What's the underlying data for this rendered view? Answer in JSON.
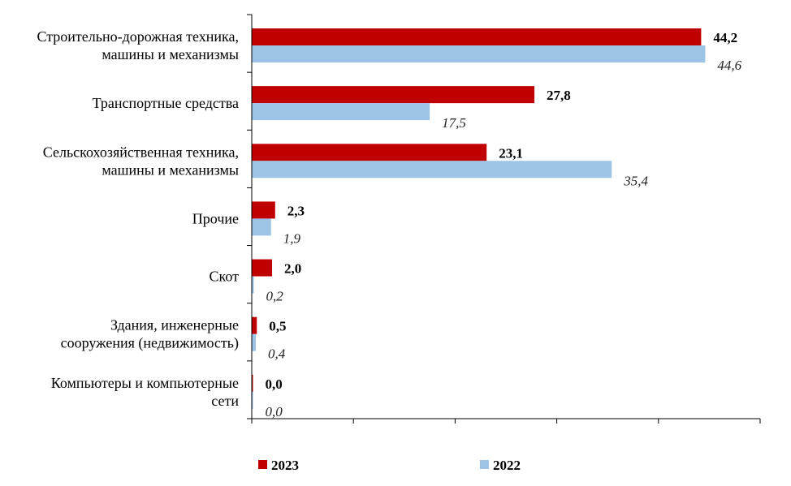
{
  "chart_data": {
    "type": "bar",
    "orientation": "horizontal",
    "categories": [
      [
        "Строительно-дорожная техника,",
        "машины и механизмы"
      ],
      [
        "Транспортные средства"
      ],
      [
        "Сельскохозяйственная техника,",
        "машины и механизмы"
      ],
      [
        "Прочие"
      ],
      [
        "Скот"
      ],
      [
        "Здания, инженерные",
        "сооружения (недвижимость)"
      ],
      [
        "Компьютеры и компьютерные",
        "сети"
      ]
    ],
    "series": [
      {
        "name": "2023",
        "color": "#c00000",
        "values": [
          44.2,
          27.8,
          23.1,
          2.3,
          2.0,
          0.5,
          0.0
        ],
        "labels": [
          "44,2",
          "27,8",
          "23,1",
          "2,3",
          "2,0",
          "0,5",
          "0,0"
        ]
      },
      {
        "name": "2022",
        "color": "#9dc3e6",
        "values": [
          44.6,
          17.5,
          35.4,
          1.9,
          0.2,
          0.4,
          0.0
        ],
        "labels": [
          "44,6",
          "17,5",
          "35,4",
          "1,9",
          "0,2",
          "0,4",
          "0,0"
        ]
      }
    ],
    "xlim": [
      0,
      50
    ],
    "x_tick_labels_shown": false,
    "grid": false,
    "legend_position": "bottom"
  }
}
